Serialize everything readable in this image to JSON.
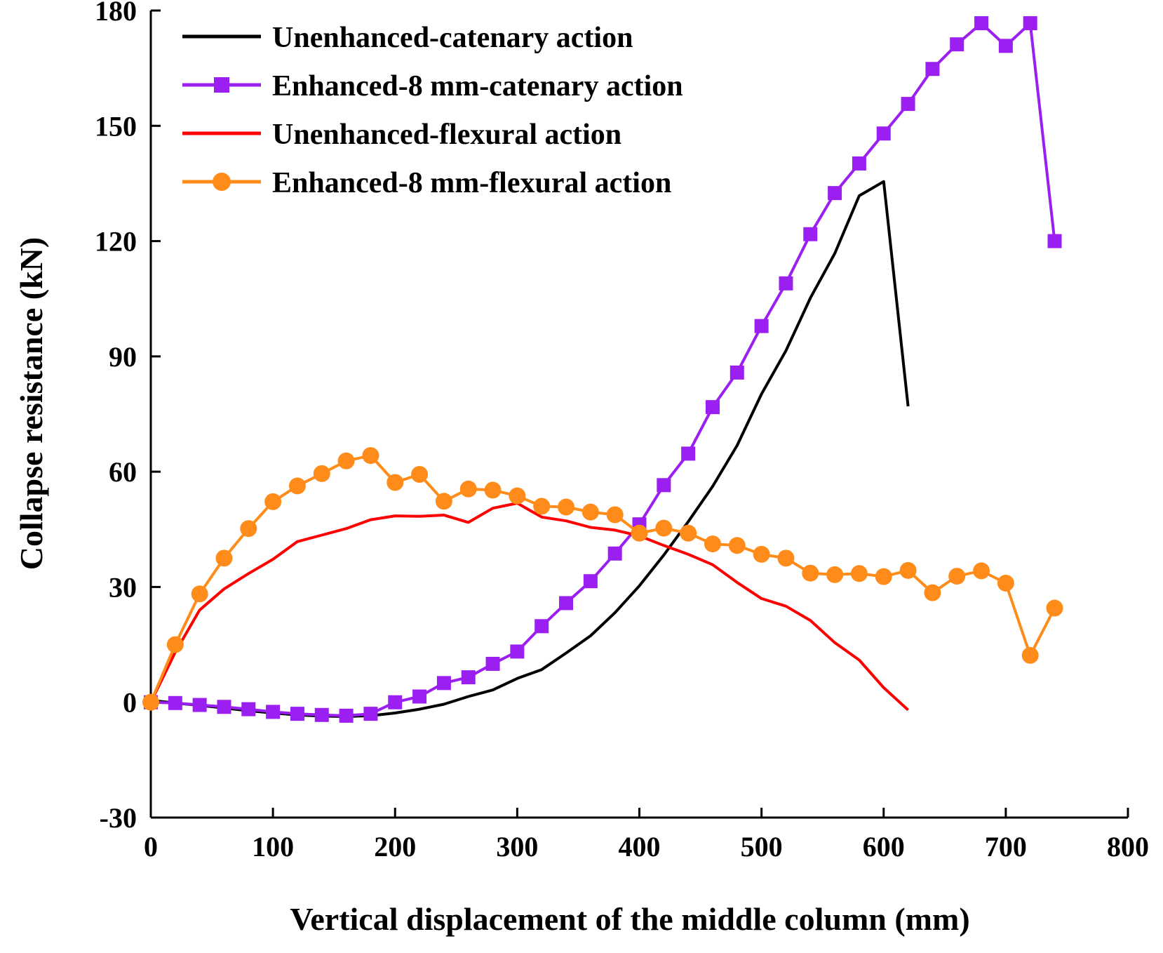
{
  "chart_data": {
    "type": "line",
    "title": "",
    "xlabel": "Vertical displacement of the middle column (mm)",
    "ylabel": "Collapse resistance (kN)",
    "xlim": [
      0,
      800
    ],
    "ylim": [
      -30,
      180
    ],
    "xticks": [
      0,
      100,
      200,
      300,
      400,
      500,
      600,
      700,
      800
    ],
    "yticks": [
      -30,
      0,
      30,
      60,
      90,
      120,
      150,
      180
    ],
    "grid": false,
    "legend_position": "top-left",
    "series": [
      {
        "name": "Unenhanced-catenary action",
        "color": "#000000",
        "marker": "none",
        "x": [
          0,
          20,
          40,
          60,
          80,
          100,
          120,
          140,
          160,
          180,
          200,
          220,
          240,
          260,
          280,
          300,
          320,
          340,
          360,
          380,
          400,
          420,
          440,
          460,
          480,
          500,
          520,
          540,
          560,
          580,
          600,
          620
        ],
        "y": [
          0.5,
          -0.2,
          -0.8,
          -1.5,
          -2.2,
          -2.8,
          -3.3,
          -3.6,
          -3.7,
          -3.5,
          -2.8,
          -1.8,
          -0.5,
          1.5,
          3.2,
          6.2,
          8.5,
          12.8,
          17.3,
          23.3,
          30.3,
          38.3,
          47.0,
          56.2,
          66.8,
          80.2,
          91.5,
          105.2,
          116.8,
          131.8,
          135.5,
          77.0
        ]
      },
      {
        "name": "Enhanced-8 mm-catenary action",
        "color": "#9b1ff0",
        "marker": "square",
        "x": [
          0,
          20,
          40,
          60,
          80,
          100,
          120,
          140,
          160,
          180,
          200,
          220,
          240,
          260,
          280,
          300,
          320,
          340,
          360,
          380,
          400,
          420,
          440,
          460,
          480,
          500,
          520,
          540,
          560,
          580,
          600,
          620,
          640,
          660,
          680,
          700,
          720,
          740
        ],
        "y": [
          0,
          -0.2,
          -0.7,
          -1.2,
          -1.8,
          -2.5,
          -3.0,
          -3.3,
          -3.5,
          -3.0,
          0.0,
          1.5,
          5.0,
          6.5,
          10.0,
          13.2,
          19.8,
          25.8,
          31.5,
          38.7,
          46.3,
          56.5,
          64.7,
          76.8,
          85.8,
          97.9,
          109.0,
          121.8,
          132.5,
          140.2,
          148.0,
          155.7,
          164.8,
          171.2,
          176.7,
          170.8,
          176.7,
          120.0
        ]
      },
      {
        "name": "Unenhanced-flexural action",
        "color": "#ff0000",
        "marker": "none",
        "x": [
          0,
          20,
          40,
          60,
          80,
          100,
          120,
          140,
          160,
          180,
          200,
          220,
          240,
          260,
          280,
          300,
          320,
          340,
          360,
          380,
          400,
          420,
          440,
          460,
          480,
          500,
          520,
          540,
          560,
          580,
          600,
          620
        ],
        "y": [
          0,
          13.0,
          24.0,
          29.5,
          33.5,
          37.2,
          41.8,
          43.5,
          45.2,
          47.5,
          48.5,
          48.4,
          48.7,
          46.8,
          50.5,
          51.8,
          48.2,
          47.2,
          45.5,
          44.8,
          43.3,
          40.8,
          38.5,
          35.8,
          31.2,
          27.0,
          25.0,
          21.3,
          15.5,
          11.0,
          3.8,
          -2.0
        ]
      },
      {
        "name": "Enhanced-8 mm-flexural action",
        "color": "#ff8c1a",
        "marker": "circle",
        "x": [
          0,
          20,
          40,
          60,
          80,
          100,
          120,
          140,
          160,
          180,
          200,
          220,
          240,
          260,
          280,
          300,
          320,
          340,
          360,
          380,
          400,
          420,
          440,
          460,
          480,
          500,
          520,
          540,
          560,
          580,
          600,
          620,
          640,
          660,
          680,
          700,
          720,
          740
        ],
        "y": [
          0,
          15.0,
          28.2,
          37.5,
          45.2,
          52.2,
          56.3,
          59.5,
          62.8,
          64.2,
          57.2,
          59.3,
          52.3,
          55.5,
          55.2,
          53.7,
          51.0,
          50.8,
          49.5,
          48.8,
          44.0,
          45.3,
          44.0,
          41.2,
          40.8,
          38.5,
          37.5,
          33.6,
          33.2,
          33.5,
          32.7,
          34.3,
          28.5,
          32.8,
          34.2,
          31.0,
          12.2,
          24.5
        ]
      }
    ]
  }
}
